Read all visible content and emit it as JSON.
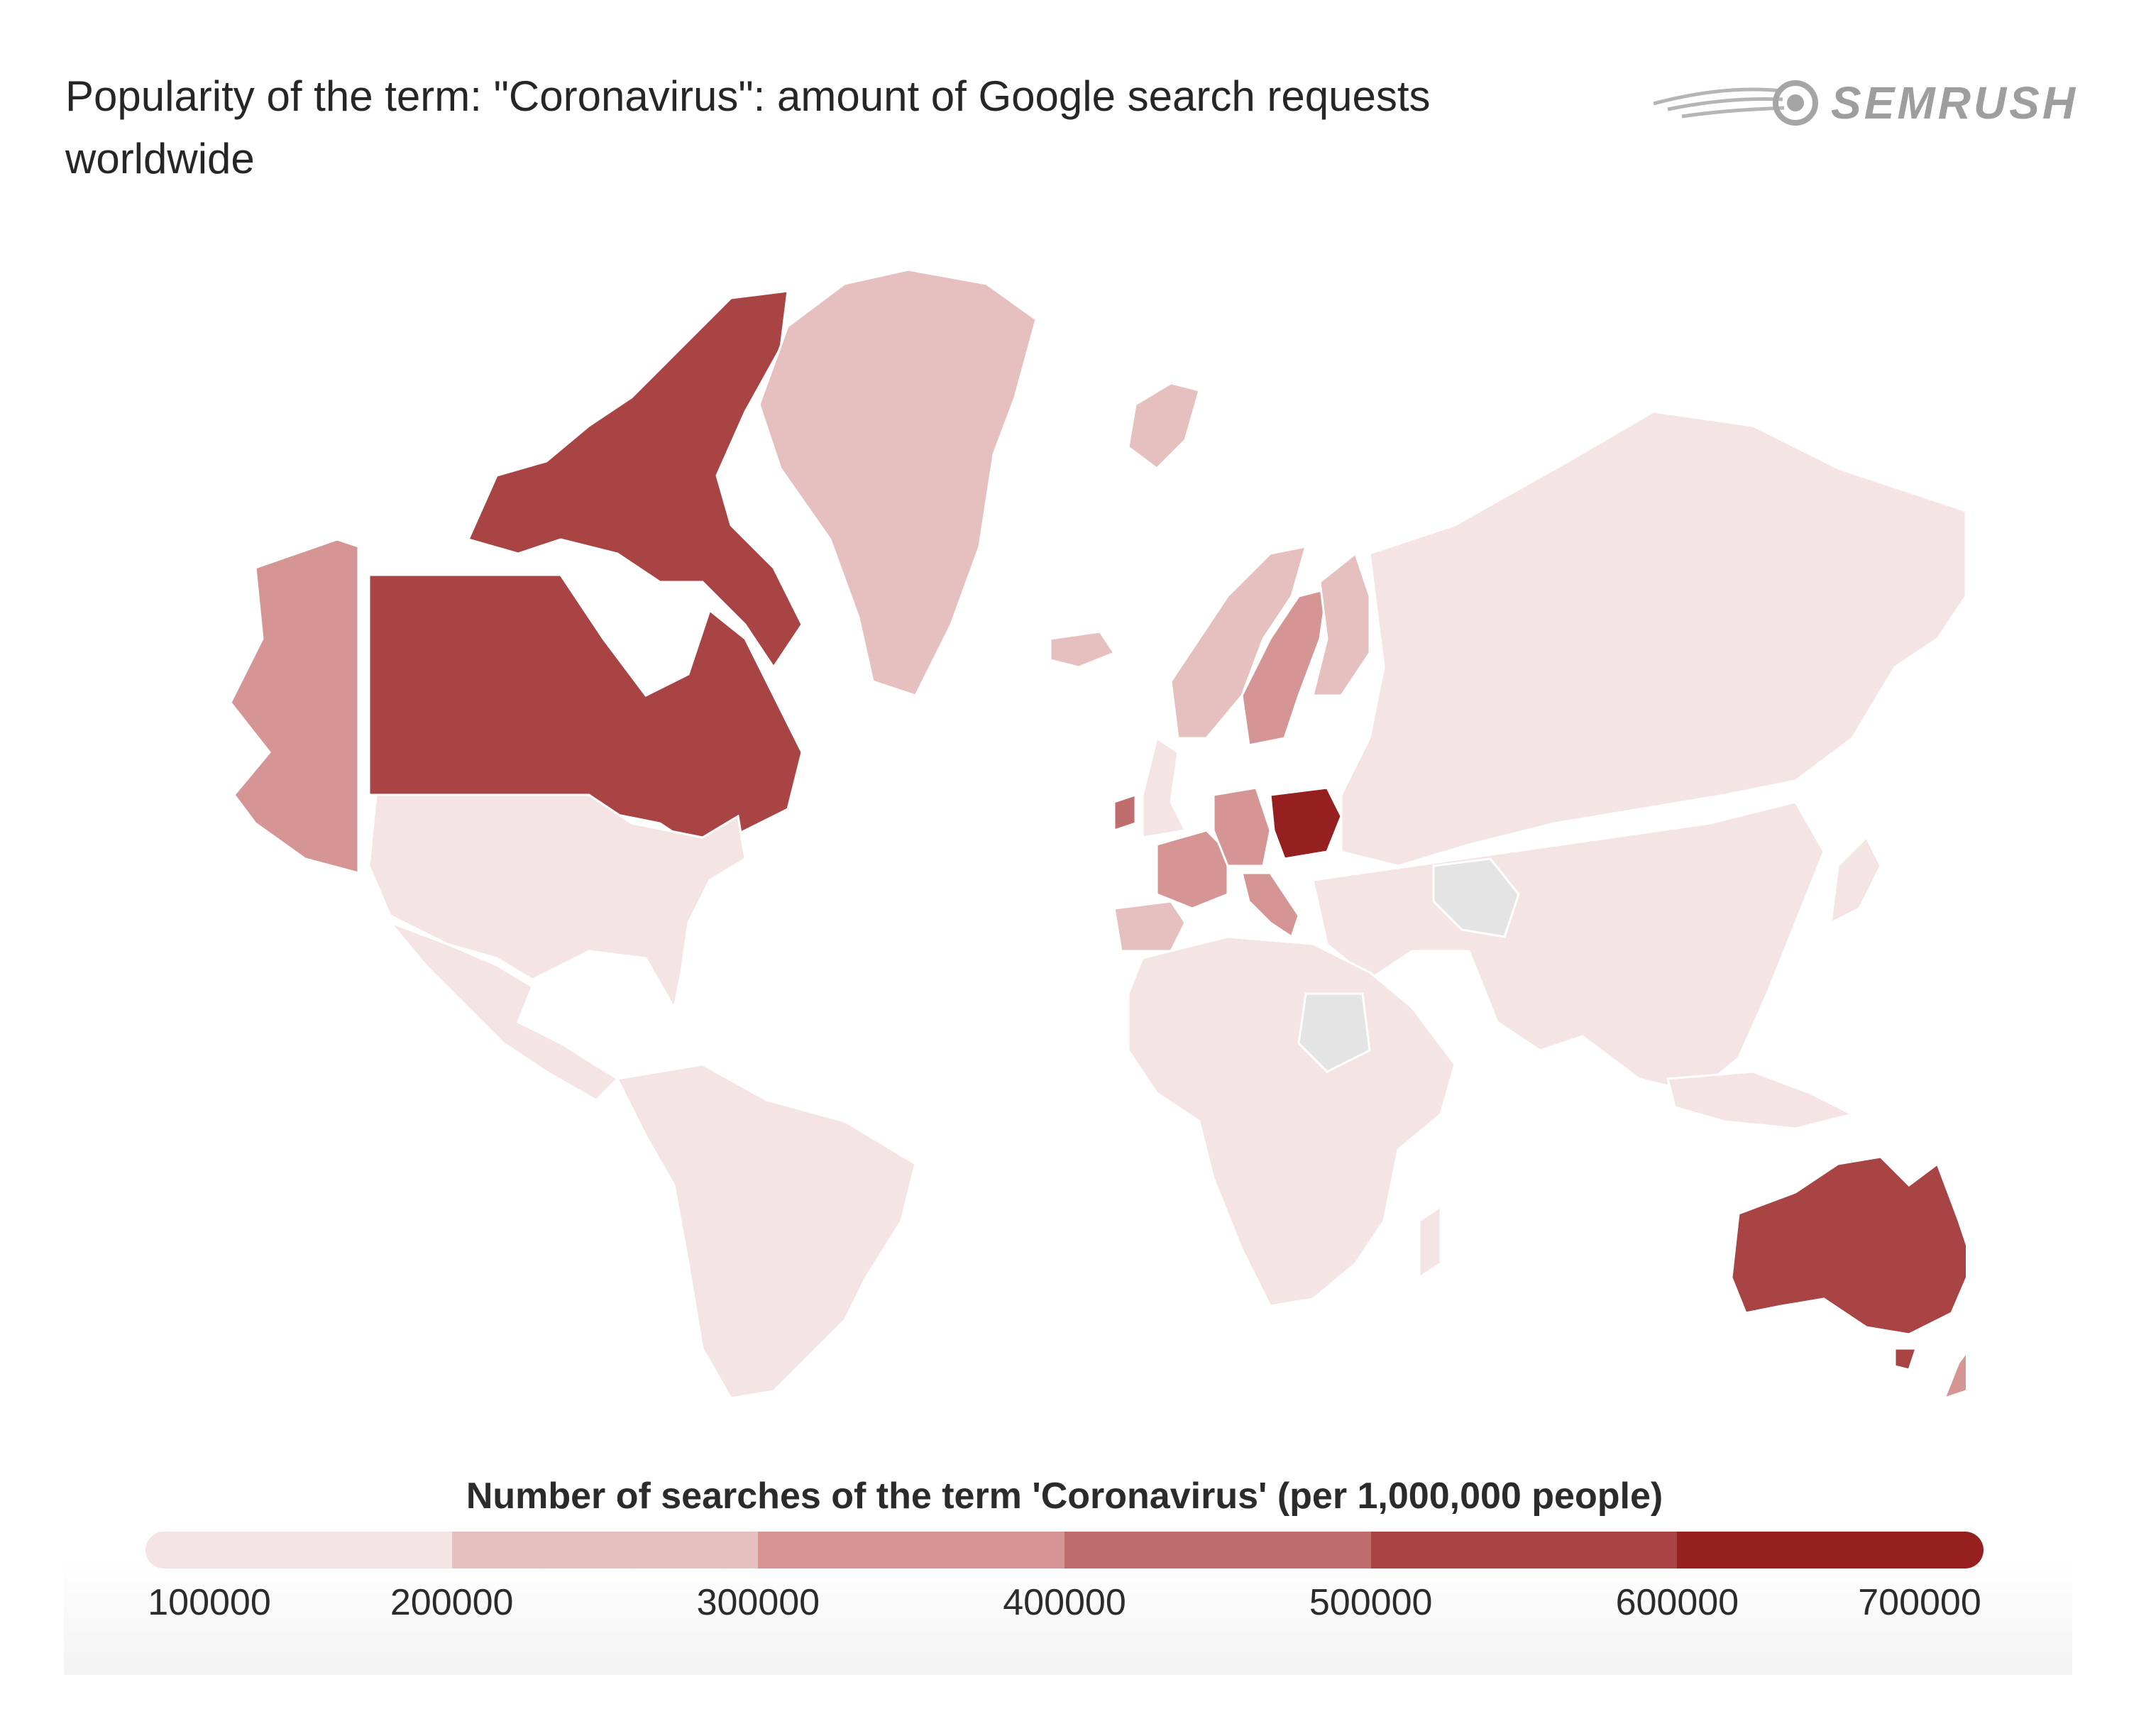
{
  "title": "Popularity of the term: \"Coronavirus\": amount of Google search requests worldwide",
  "brand": {
    "name": "SEMRUSH",
    "logo_color": "#9e9e9e"
  },
  "legend": {
    "title": "Number of searches of the term 'Coronavirus' (per 1,000,000 people)",
    "ticks": [
      "100000",
      "200000",
      "300000",
      "400000",
      "500000",
      "600000",
      "700000"
    ],
    "bins": [
      {
        "from": 100000,
        "to": 200000,
        "color": "#f5e4e4"
      },
      {
        "from": 200000,
        "to": 300000,
        "color": "#e6bfbf"
      },
      {
        "from": 300000,
        "to": 400000,
        "color": "#d69595"
      },
      {
        "from": 400000,
        "to": 500000,
        "color": "#bf6d6d"
      },
      {
        "from": 500000,
        "to": 600000,
        "color": "#a84444"
      },
      {
        "from": 600000,
        "to": 700000,
        "color": "#961f1f"
      }
    ],
    "no_data_color": "#e4e4e4"
  },
  "map_data": {
    "type": "choropleth",
    "scale": "searches per 1,000,000 people",
    "regions": [
      {
        "name": "Canada",
        "bin": 5
      },
      {
        "name": "Greenland",
        "bin": 2
      },
      {
        "name": "Alaska",
        "bin": 3
      },
      {
        "name": "United States",
        "bin": 3
      },
      {
        "name": "Mexico",
        "bin": 1
      },
      {
        "name": "South America",
        "bin": 1
      },
      {
        "name": "Iceland",
        "bin": 2
      },
      {
        "name": "Ireland",
        "bin": 4
      },
      {
        "name": "United Kingdom",
        "bin": 2
      },
      {
        "name": "Norway",
        "bin": 2
      },
      {
        "name": "Sweden",
        "bin": 3
      },
      {
        "name": "Finland",
        "bin": 2
      },
      {
        "name": "France",
        "bin": 3
      },
      {
        "name": "Germany",
        "bin": 3
      },
      {
        "name": "Italy",
        "bin": 3
      },
      {
        "name": "Spain",
        "bin": 2
      },
      {
        "name": "Poland",
        "bin": 6
      },
      {
        "name": "Russia",
        "bin": 1
      },
      {
        "name": "Asia",
        "bin": 1
      },
      {
        "name": "Iran",
        "bin": 0
      },
      {
        "name": "Africa",
        "bin": 1
      },
      {
        "name": "Sudan",
        "bin": 0
      },
      {
        "name": "Australia",
        "bin": 5
      },
      {
        "name": "New Zealand",
        "bin": 3
      }
    ]
  }
}
